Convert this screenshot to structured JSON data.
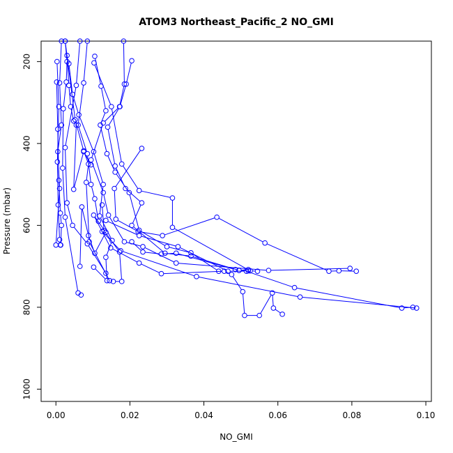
{
  "chart_data": {
    "type": "line",
    "title": "ATOM3 Northeast_Pacific_2 NO_GMI",
    "xlabel": "NO_GMI",
    "ylabel": "Pressure (mbar)",
    "xlim": [
      -0.004,
      0.1015
    ],
    "ylim": [
      1030,
      150
    ],
    "y_reversed": true,
    "x_ticks": [
      0.0,
      0.02,
      0.04,
      0.06,
      0.08,
      0.1
    ],
    "x_tick_labels": [
      "0.00",
      "0.02",
      "0.04",
      "0.06",
      "0.08",
      "0.10"
    ],
    "y_ticks": [
      200,
      400,
      600,
      800,
      1000
    ],
    "y_tick_labels": [
      "200",
      "400",
      "600",
      "800",
      "1000"
    ],
    "grid": false,
    "legend": "none",
    "marker": "open-circle",
    "colors": {
      "series": "#0000ff",
      "frame": "#000000"
    },
    "series": [
      {
        "points": [
          [
            0.0,
            648
          ],
          [
            0.001,
            510
          ],
          [
            0.0005,
            420
          ],
          [
            0.0015,
            355
          ],
          [
            0.001,
            252
          ],
          [
            0.0015,
            150
          ]
        ]
      },
      {
        "points": [
          [
            0.0003,
            200
          ],
          [
            0.0008,
            310
          ],
          [
            0.0004,
            445
          ],
          [
            0.0006,
            550
          ],
          [
            0.001,
            635
          ],
          [
            0.0012,
            648
          ]
        ]
      },
      {
        "points": [
          [
            0.0002,
            250
          ],
          [
            0.0005,
            365
          ],
          [
            0.0008,
            490
          ],
          [
            0.0012,
            570
          ],
          [
            0.0015,
            600
          ],
          [
            0.0013,
            648
          ]
        ]
      },
      {
        "points": [
          [
            0.0025,
            150
          ],
          [
            0.003,
            200
          ],
          [
            0.0028,
            250
          ],
          [
            0.002,
            315
          ],
          [
            0.0018,
            460
          ],
          [
            0.0025,
            580
          ],
          [
            0.006,
            765
          ],
          [
            0.0068,
            770
          ]
        ]
      },
      {
        "points": [
          [
            0.003,
            185
          ],
          [
            0.0035,
            258
          ],
          [
            0.004,
            310
          ],
          [
            0.0048,
            345
          ],
          [
            0.0055,
            355
          ],
          [
            0.0048,
            512
          ],
          [
            0.0075,
            420
          ],
          [
            0.0095,
            452
          ]
        ]
      },
      {
        "points": [
          [
            0.0065,
            150
          ],
          [
            0.0055,
            258
          ],
          [
            0.0025,
            410
          ],
          [
            0.003,
            545
          ],
          [
            0.0045,
            600
          ],
          [
            0.0085,
            645
          ],
          [
            0.0135,
            717
          ]
        ]
      },
      {
        "points": [
          [
            0.0085,
            150
          ],
          [
            0.0075,
            252
          ],
          [
            0.006,
            355
          ],
          [
            0.0085,
            425
          ],
          [
            0.0095,
            500
          ],
          [
            0.0105,
            535
          ],
          [
            0.0115,
            590
          ]
        ]
      },
      {
        "points": [
          [
            0.0105,
            187
          ],
          [
            0.0122,
            260
          ],
          [
            0.0135,
            320
          ],
          [
            0.012,
            355
          ],
          [
            0.0138,
            425
          ],
          [
            0.016,
            470
          ],
          [
            0.0198,
            520
          ],
          [
            0.0225,
            612
          ],
          [
            0.03,
            652
          ],
          [
            0.0365,
            667
          ],
          [
            0.044,
            712
          ]
        ]
      },
      {
        "points": [
          [
            0.0103,
            203
          ],
          [
            0.015,
            310
          ],
          [
            0.0178,
            450
          ],
          [
            0.0225,
            515
          ],
          [
            0.0315,
            533
          ],
          [
            0.0315,
            605
          ],
          [
            0.0525,
            711
          ],
          [
            0.0545,
            712
          ]
        ]
      },
      {
        "points": [
          [
            0.0205,
            198
          ],
          [
            0.019,
            255
          ],
          [
            0.0173,
            310
          ],
          [
            0.014,
            360
          ],
          [
            0.016,
            455
          ],
          [
            0.0188,
            510
          ],
          [
            0.0232,
            545
          ],
          [
            0.0205,
            600
          ],
          [
            0.0295,
            668
          ],
          [
            0.0365,
            675
          ],
          [
            0.0495,
            710
          ],
          [
            0.052,
            711
          ]
        ]
      },
      {
        "points": [
          [
            0.0183,
            150
          ],
          [
            0.0185,
            255
          ],
          [
            0.0172,
            310
          ],
          [
            0.0128,
            350
          ],
          [
            0.0095,
            440
          ],
          [
            0.0128,
            520
          ],
          [
            0.0142,
            575
          ],
          [
            0.0185,
            640
          ],
          [
            0.0235,
            652
          ],
          [
            0.0325,
            692
          ],
          [
            0.0575,
            710
          ],
          [
            0.0795,
            705
          ]
        ]
      },
      {
        "points": [
          [
            0.0232,
            412
          ],
          [
            0.0158,
            510
          ],
          [
            0.0162,
            585
          ],
          [
            0.0222,
            615
          ],
          [
            0.0288,
            625
          ],
          [
            0.0435,
            580
          ],
          [
            0.0565,
            643
          ],
          [
            0.0738,
            712
          ],
          [
            0.0765,
            711
          ],
          [
            0.0812,
            712
          ]
        ]
      },
      {
        "points": [
          [
            0.0025,
            150
          ],
          [
            0.0052,
            342
          ],
          [
            0.0075,
            418
          ],
          [
            0.0088,
            450
          ],
          [
            0.0082,
            495
          ],
          [
            0.009,
            640
          ],
          [
            0.0145,
            735
          ],
          [
            0.0155,
            737
          ],
          [
            0.0178,
            737
          ],
          [
            0.0172,
            665
          ],
          [
            0.013,
            613
          ],
          [
            0.0125,
            550
          ]
        ]
      },
      {
        "points": [
          [
            0.0065,
            700
          ],
          [
            0.007,
            555
          ],
          [
            0.0088,
            625
          ],
          [
            0.0105,
            668
          ],
          [
            0.0135,
            617
          ],
          [
            0.0102,
            575
          ],
          [
            0.0148,
            655
          ],
          [
            0.0225,
            692
          ],
          [
            0.0285,
            718
          ],
          [
            0.0455,
            712
          ],
          [
            0.0475,
            720
          ],
          [
            0.0505,
            762
          ],
          [
            0.051,
            820
          ],
          [
            0.055,
            820
          ],
          [
            0.0585,
            765
          ],
          [
            0.0588,
            802
          ],
          [
            0.0612,
            817
          ]
        ]
      },
      {
        "points": [
          [
            0.0135,
            588
          ],
          [
            0.0225,
            625
          ],
          [
            0.033,
            652
          ],
          [
            0.0465,
            712
          ],
          [
            0.0515,
            712
          ],
          [
            0.0645,
            752
          ],
          [
            0.0935,
            802
          ],
          [
            0.0965,
            800
          ],
          [
            0.0975,
            802
          ],
          [
            0.066,
            775
          ],
          [
            0.038,
            725
          ],
          [
            0.0175,
            662
          ],
          [
            0.0125,
            615
          ]
        ]
      },
      {
        "points": [
          [
            0.0205,
            640
          ],
          [
            0.0235,
            665
          ],
          [
            0.0285,
            670
          ],
          [
            0.0325,
            668
          ],
          [
            0.0485,
            708
          ],
          [
            0.0495,
            710
          ],
          [
            0.052,
            708
          ]
        ]
      },
      {
        "points": [
          [
            0.0102,
            702
          ],
          [
            0.0138,
            735
          ],
          [
            0.0135,
            678
          ],
          [
            0.0152,
            637
          ],
          [
            0.0118,
            577
          ],
          [
            0.0128,
            500
          ],
          [
            0.0102,
            420
          ],
          [
            0.0062,
            330
          ],
          [
            0.0045,
            280
          ],
          [
            0.0035,
            205
          ]
        ]
      }
    ]
  }
}
